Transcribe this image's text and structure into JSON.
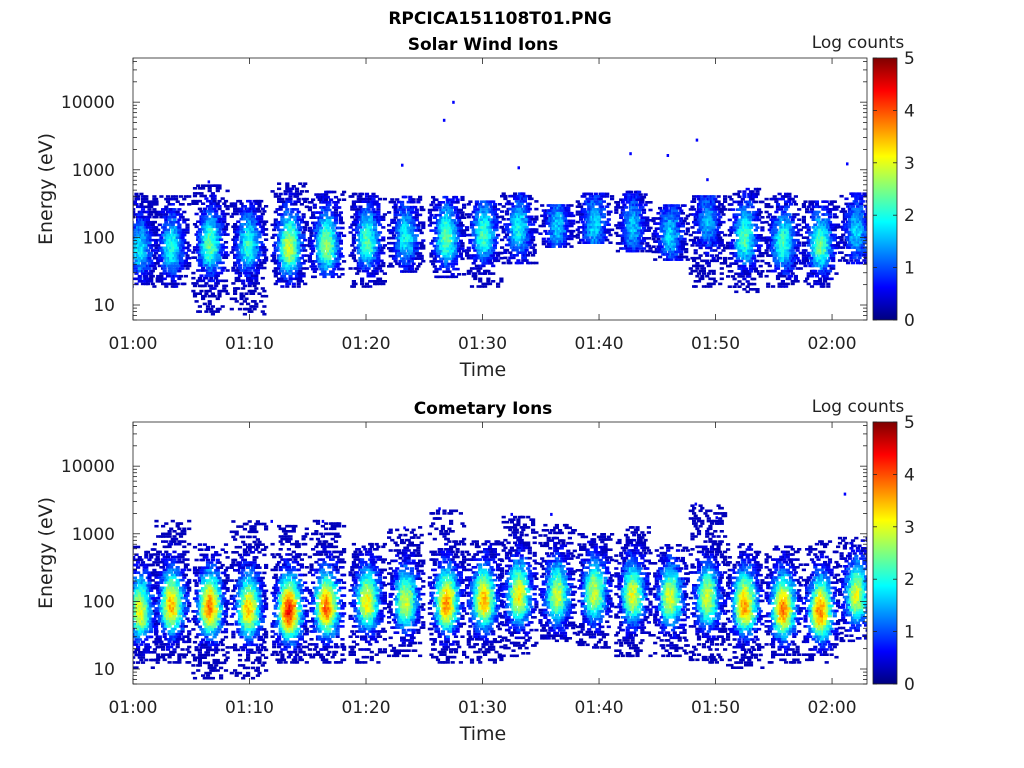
{
  "figure_title": "RPCICA151108T01.PNG",
  "colors": {
    "colormap": [
      "#00007f",
      "#0000ff",
      "#007fff",
      "#00ffff",
      "#7fff7f",
      "#ffff00",
      "#ff7f00",
      "#ff0000",
      "#7f0000"
    ],
    "axis": "#222222"
  },
  "chart_data": [
    {
      "type": "heatmap",
      "title": "Solar Wind Ions",
      "xlabel": "Time",
      "ylabel": "Energy (eV)",
      "x_ticks": [
        "01:00",
        "01:10",
        "01:20",
        "01:30",
        "01:40",
        "01:50",
        "02:00"
      ],
      "x_range_minutes": [
        0,
        63
      ],
      "y_ticks": [
        "10",
        "100",
        "1000",
        "10000"
      ],
      "y_range_ev": [
        6,
        45000
      ],
      "y_scale": "log",
      "colorbar": {
        "label": "Log counts",
        "ticks": [
          "0",
          "1",
          "2",
          "3",
          "4",
          "5"
        ],
        "range": [
          0,
          5
        ]
      },
      "bursts": [
        {
          "t": 0.5,
          "e": 60,
          "peak": 1.8,
          "top": 450,
          "bot": 18
        },
        {
          "t": 3.2,
          "e": 65,
          "peak": 2.0,
          "top": 420,
          "bot": 18
        },
        {
          "t": 6.5,
          "e": 70,
          "peak": 2.4,
          "top": 600,
          "bot": 7
        },
        {
          "t": 9.8,
          "e": 70,
          "peak": 2.1,
          "top": 350,
          "bot": 7
        },
        {
          "t": 13.3,
          "e": 65,
          "peak": 2.9,
          "top": 600,
          "bot": 18
        },
        {
          "t": 16.5,
          "e": 70,
          "peak": 2.6,
          "top": 450,
          "bot": 25
        },
        {
          "t": 20.0,
          "e": 80,
          "peak": 2.3,
          "top": 450,
          "bot": 18
        },
        {
          "t": 23.3,
          "e": 90,
          "peak": 1.9,
          "top": 400,
          "bot": 30
        },
        {
          "t": 26.8,
          "e": 90,
          "peak": 2.4,
          "top": 400,
          "bot": 25
        },
        {
          "t": 30.0,
          "e": 100,
          "peak": 2.2,
          "top": 350,
          "bot": 18
        },
        {
          "t": 33.0,
          "e": 120,
          "peak": 1.9,
          "top": 450,
          "bot": 40
        },
        {
          "t": 36.3,
          "e": 130,
          "peak": 1.6,
          "top": 300,
          "bot": 70
        },
        {
          "t": 39.5,
          "e": 140,
          "peak": 1.7,
          "top": 450,
          "bot": 80
        },
        {
          "t": 42.8,
          "e": 130,
          "peak": 1.6,
          "top": 450,
          "bot": 60
        },
        {
          "t": 46.0,
          "e": 100,
          "peak": 1.7,
          "top": 300,
          "bot": 45
        },
        {
          "t": 49.2,
          "e": 150,
          "peak": 1.5,
          "top": 400,
          "bot": 18
        },
        {
          "t": 52.4,
          "e": 90,
          "peak": 2.3,
          "top": 500,
          "bot": 15
        },
        {
          "t": 55.7,
          "e": 75,
          "peak": 2.2,
          "top": 450,
          "bot": 18
        },
        {
          "t": 58.9,
          "e": 70,
          "peak": 2.4,
          "top": 350,
          "bot": 18
        },
        {
          "t": 62.0,
          "e": 110,
          "peak": 1.7,
          "top": 450,
          "bot": 40
        }
      ],
      "sparse_points": [
        {
          "t": 27.4,
          "e": 9800
        },
        {
          "t": 26.6,
          "e": 5300
        },
        {
          "t": 23.0,
          "e": 1150
        },
        {
          "t": 33.0,
          "e": 1050
        },
        {
          "t": 42.6,
          "e": 1700
        },
        {
          "t": 45.8,
          "e": 1600
        },
        {
          "t": 48.3,
          "e": 2700
        },
        {
          "t": 61.2,
          "e": 1200
        },
        {
          "t": 6.4,
          "e": 650
        },
        {
          "t": 49.2,
          "e": 700
        }
      ]
    },
    {
      "type": "heatmap",
      "title": "Cometary Ions",
      "xlabel": "Time",
      "ylabel": "Energy (eV)",
      "x_ticks": [
        "01:00",
        "01:10",
        "01:20",
        "01:30",
        "01:40",
        "01:50",
        "02:00"
      ],
      "x_range_minutes": [
        0,
        63
      ],
      "y_ticks": [
        "10",
        "100",
        "1000",
        "10000"
      ],
      "y_range_ev": [
        6,
        45000
      ],
      "y_scale": "log",
      "colorbar": {
        "label": "Log counts",
        "ticks": [
          "0",
          "1",
          "2",
          "3",
          "4",
          "5"
        ],
        "range": [
          0,
          5
        ]
      },
      "bursts": [
        {
          "t": 0.5,
          "e": 65,
          "peak": 3.1,
          "top": 650,
          "bot": 10
        },
        {
          "t": 3.2,
          "e": 80,
          "peak": 3.5,
          "top": 1500,
          "bot": 12
        },
        {
          "t": 6.5,
          "e": 75,
          "peak": 3.8,
          "top": 700,
          "bot": 7
        },
        {
          "t": 9.8,
          "e": 70,
          "peak": 3.4,
          "top": 1500,
          "bot": 7
        },
        {
          "t": 13.3,
          "e": 65,
          "peak": 4.3,
          "top": 1300,
          "bot": 12
        },
        {
          "t": 16.5,
          "e": 75,
          "peak": 3.9,
          "top": 1600,
          "bot": 12
        },
        {
          "t": 20.0,
          "e": 90,
          "peak": 3.2,
          "top": 700,
          "bot": 12
        },
        {
          "t": 23.3,
          "e": 90,
          "peak": 2.9,
          "top": 1200,
          "bot": 15
        },
        {
          "t": 26.8,
          "e": 85,
          "peak": 3.7,
          "top": 2200,
          "bot": 12
        },
        {
          "t": 30.0,
          "e": 95,
          "peak": 3.5,
          "top": 800,
          "bot": 12
        },
        {
          "t": 33.0,
          "e": 110,
          "peak": 3.2,
          "top": 1700,
          "bot": 15
        },
        {
          "t": 36.3,
          "e": 110,
          "peak": 2.9,
          "top": 1300,
          "bot": 25
        },
        {
          "t": 39.5,
          "e": 120,
          "peak": 2.9,
          "top": 1000,
          "bot": 20
        },
        {
          "t": 42.8,
          "e": 110,
          "peak": 3.0,
          "top": 1300,
          "bot": 15
        },
        {
          "t": 46.0,
          "e": 100,
          "peak": 3.0,
          "top": 700,
          "bot": 15
        },
        {
          "t": 49.2,
          "e": 100,
          "peak": 2.9,
          "top": 2500,
          "bot": 12
        },
        {
          "t": 52.4,
          "e": 80,
          "peak": 3.6,
          "top": 700,
          "bot": 10
        },
        {
          "t": 55.7,
          "e": 70,
          "peak": 3.8,
          "top": 650,
          "bot": 12
        },
        {
          "t": 58.9,
          "e": 65,
          "peak": 3.8,
          "top": 800,
          "bot": 12
        },
        {
          "t": 62.0,
          "e": 110,
          "peak": 3.0,
          "top": 900,
          "bot": 25
        }
      ],
      "sparse_points": [
        {
          "t": 26.2,
          "e": 2300
        },
        {
          "t": 32.4,
          "e": 1900
        },
        {
          "t": 35.8,
          "e": 1900
        },
        {
          "t": 48.2,
          "e": 2700
        },
        {
          "t": 50.0,
          "e": 1700
        },
        {
          "t": 61.0,
          "e": 3800
        },
        {
          "t": 11.8,
          "e": 1500
        },
        {
          "t": 16.2,
          "e": 1500
        },
        {
          "t": 23.2,
          "e": 1200
        }
      ]
    }
  ]
}
